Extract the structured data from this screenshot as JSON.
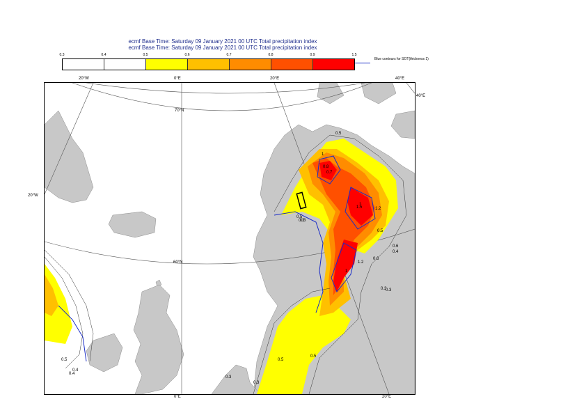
{
  "title": {
    "line1": "ecmf  Base Time: Saturday 09 January 2021 00 UTC Total precipitation index",
    "line2": "ecmf  Base Time: Saturday 09 January 2021 00 UTC Total precipitation index"
  },
  "legend": {
    "ticks": [
      "0.3",
      "0.4",
      "0.5",
      "0.6",
      "0.7",
      "0.8",
      "0.9",
      "1.5"
    ],
    "colors": [
      "#ffffff",
      "#ffffff",
      "#ffff00",
      "#ffc000",
      "#ff8c00",
      "#ff5000",
      "#ff0000"
    ],
    "contour_note": "Blue contours for SOT(thickness 1)",
    "contour_color": "#1a2cc7"
  },
  "map": {
    "land_color": "#c8c8c8",
    "grid_labels": {
      "top_20w": "20°W",
      "top_0e": "0°E",
      "top_20e": "20°E",
      "top_40e": "40°E",
      "right_40e": "40°E",
      "left_20w": "20°W",
      "bottom_0e": "0°E",
      "bottom_20e": "20°E",
      "lat_70n": "70°N",
      "lat_60n": "60°N"
    },
    "contour_labels": [
      "0.5",
      "0.5",
      "0.3",
      "0.4",
      "0.3",
      "0.5",
      "0.5",
      "0.6",
      "0.4",
      "0.3",
      "0.5",
      "0.4",
      "0.3",
      "1",
      "0.8",
      "0.7",
      "1",
      "1.5",
      "1.2",
      "0.5",
      "1.2",
      "0.6",
      "1",
      "0.3",
      "0.3"
    ]
  }
}
